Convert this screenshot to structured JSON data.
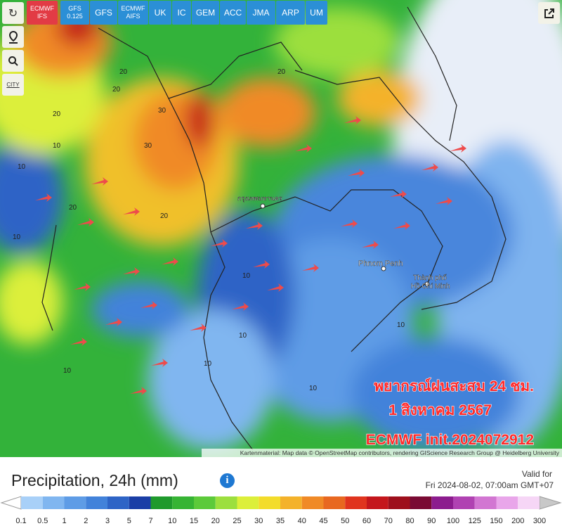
{
  "models": [
    {
      "lines": [
        "ECMWF",
        "IFS"
      ]
    },
    {
      "lines": [
        "GFS",
        "0.125"
      ]
    },
    {
      "lines": [
        "GFS"
      ]
    },
    {
      "lines": [
        "ECMWF",
        "AIFS"
      ]
    },
    {
      "lines": [
        "UK"
      ]
    },
    {
      "lines": [
        "IC"
      ]
    },
    {
      "lines": [
        "GEM"
      ]
    },
    {
      "lines": [
        "ACC"
      ]
    },
    {
      "lines": [
        "JMA"
      ]
    },
    {
      "lines": [
        "ARP"
      ]
    },
    {
      "lines": [
        "UM"
      ]
    }
  ],
  "controls": {
    "city": "CITY"
  },
  "map": {
    "places": [
      "กรุงเทพมหานคร",
      "Phnom Penh",
      "Thành phố",
      "Hồ Chí Minh"
    ],
    "contours": [
      "20",
      "20",
      "30",
      "30",
      "20",
      "10",
      "10",
      "20",
      "10",
      "20",
      "10",
      "10",
      "10",
      "20",
      "10",
      "10",
      "10"
    ],
    "overlay": [
      "พยากรณ์ฝนสะสม 24 ชม.",
      "1 สิงหาคม 2567",
      "ECMWF init.2024072912"
    ],
    "attribution": "Kartenmaterial: Map data © OpenStreetMap contributors, rendering GIScience Research Group @ Heidelberg University"
  },
  "footer": {
    "title": "Precipitation, 24h (mm)",
    "valid_label": "Valid for",
    "valid_time": "Fri 2024-08-02, 07:00am GMT+07"
  },
  "legend": {
    "labels": [
      0.1,
      0.5,
      1,
      2,
      3,
      5,
      7,
      10,
      15,
      20,
      25,
      30,
      35,
      40,
      45,
      50,
      60,
      70,
      80,
      90,
      100,
      125,
      150,
      200,
      300
    ],
    "colors": [
      "#a8d0f8",
      "#80b6f0",
      "#5e9ce6",
      "#4282da",
      "#2e64c6",
      "#1a3ea6",
      "#1f9a2c",
      "#36b434",
      "#5cca3a",
      "#9cdf3e",
      "#dcef3a",
      "#f3dc2a",
      "#f4b22a",
      "#f08a26",
      "#e86820",
      "#e0341e",
      "#c4161c",
      "#9e0f1c",
      "#7a0a34",
      "#8c1c8e",
      "#b042b2",
      "#d276d2",
      "#e9a6ea",
      "#f6d6f6"
    ]
  }
}
